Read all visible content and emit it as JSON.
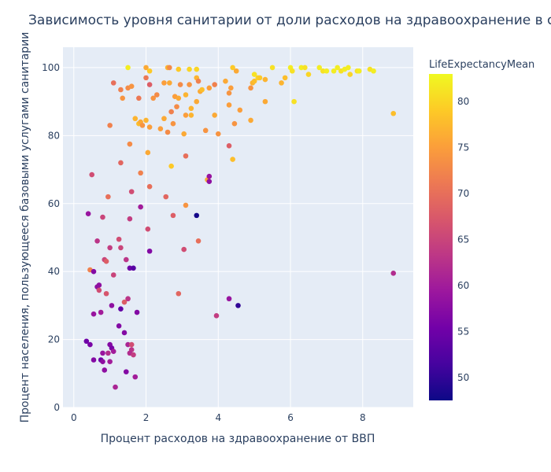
{
  "chart_data": {
    "type": "scatter",
    "title": "Зависимость уровня санитарии от доли расходов на здравоохранение в странах",
    "xlabel": "Процент расходов на здравоохранение от ВВП",
    "ylabel": "Процент населения, пользующееся базовыми услугами санитарии",
    "xlim": [
      -0.3,
      9.4
    ],
    "ylim": [
      0,
      106
    ],
    "xticks": [
      0,
      2,
      4,
      6,
      8
    ],
    "yticks": [
      0,
      20,
      40,
      60,
      80,
      100
    ],
    "grid": true,
    "colorbar": {
      "title": "LifeExpectancyMean",
      "min": 47.5,
      "max": 83,
      "ticks": [
        50,
        55,
        60,
        65,
        70,
        75,
        80
      ],
      "colorscale": [
        "#0d0887",
        "#46039f",
        "#7201a8",
        "#9c179e",
        "#bd3786",
        "#d8576b",
        "#ed7953",
        "#fb9f3a",
        "#fdca26",
        "#f0f921"
      ]
    },
    "points": [
      {
        "x": 1.5,
        "y": 100,
        "c": 82
      },
      {
        "x": 2.0,
        "y": 100,
        "c": 76
      },
      {
        "x": 2.1,
        "y": 99,
        "c": 79
      },
      {
        "x": 2.6,
        "y": 100,
        "c": 77
      },
      {
        "x": 2.65,
        "y": 100,
        "c": 73
      },
      {
        "x": 2.9,
        "y": 99.5,
        "c": 79
      },
      {
        "x": 3.2,
        "y": 99.5,
        "c": 80
      },
      {
        "x": 3.4,
        "y": 99.5,
        "c": 80
      },
      {
        "x": 4.4,
        "y": 100,
        "c": 79
      },
      {
        "x": 5.0,
        "y": 98,
        "c": 81
      },
      {
        "x": 5.1,
        "y": 97,
        "c": 80
      },
      {
        "x": 5.5,
        "y": 100,
        "c": 81
      },
      {
        "x": 6.0,
        "y": 100,
        "c": 82
      },
      {
        "x": 6.05,
        "y": 99,
        "c": 81
      },
      {
        "x": 6.3,
        "y": 100,
        "c": 82
      },
      {
        "x": 6.4,
        "y": 100,
        "c": 81
      },
      {
        "x": 6.5,
        "y": 98,
        "c": 80
      },
      {
        "x": 6.8,
        "y": 100,
        "c": 82
      },
      {
        "x": 6.9,
        "y": 99,
        "c": 81
      },
      {
        "x": 7.0,
        "y": 99,
        "c": 82
      },
      {
        "x": 7.2,
        "y": 99,
        "c": 82
      },
      {
        "x": 7.3,
        "y": 100,
        "c": 82
      },
      {
        "x": 7.4,
        "y": 99,
        "c": 81
      },
      {
        "x": 7.5,
        "y": 99.5,
        "c": 82
      },
      {
        "x": 7.6,
        "y": 100,
        "c": 82
      },
      {
        "x": 7.65,
        "y": 98,
        "c": 80
      },
      {
        "x": 7.85,
        "y": 99,
        "c": 81
      },
      {
        "x": 7.9,
        "y": 99,
        "c": 82
      },
      {
        "x": 8.2,
        "y": 99.5,
        "c": 81
      },
      {
        "x": 8.3,
        "y": 99,
        "c": 82
      },
      {
        "x": 2.0,
        "y": 97,
        "c": 71
      },
      {
        "x": 2.1,
        "y": 95,
        "c": 68
      },
      {
        "x": 1.3,
        "y": 93.5,
        "c": 72
      },
      {
        "x": 1.5,
        "y": 94,
        "c": 73
      },
      {
        "x": 1.6,
        "y": 94.5,
        "c": 74
      },
      {
        "x": 1.8,
        "y": 91,
        "c": 71
      },
      {
        "x": 1.35,
        "y": 91,
        "c": 74
      },
      {
        "x": 1.1,
        "y": 95.5,
        "c": 70
      },
      {
        "x": 2.2,
        "y": 91,
        "c": 74
      },
      {
        "x": 2.3,
        "y": 92,
        "c": 73
      },
      {
        "x": 2.5,
        "y": 95.5,
        "c": 75
      },
      {
        "x": 2.65,
        "y": 95.5,
        "c": 76
      },
      {
        "x": 2.8,
        "y": 91.5,
        "c": 75
      },
      {
        "x": 2.9,
        "y": 91,
        "c": 76
      },
      {
        "x": 2.95,
        "y": 95,
        "c": 73
      },
      {
        "x": 3.1,
        "y": 92,
        "c": 77
      },
      {
        "x": 3.2,
        "y": 95,
        "c": 74
      },
      {
        "x": 3.25,
        "y": 88,
        "c": 77
      },
      {
        "x": 3.4,
        "y": 97,
        "c": 77
      },
      {
        "x": 3.45,
        "y": 96,
        "c": 72
      },
      {
        "x": 3.5,
        "y": 93,
        "c": 76
      },
      {
        "x": 3.55,
        "y": 93.5,
        "c": 78
      },
      {
        "x": 3.75,
        "y": 94,
        "c": 75
      },
      {
        "x": 3.9,
        "y": 95,
        "c": 72
      },
      {
        "x": 4.2,
        "y": 96,
        "c": 76
      },
      {
        "x": 4.3,
        "y": 92.5,
        "c": 74
      },
      {
        "x": 4.35,
        "y": 94,
        "c": 75
      },
      {
        "x": 4.5,
        "y": 99,
        "c": 76
      },
      {
        "x": 4.9,
        "y": 94,
        "c": 74
      },
      {
        "x": 4.95,
        "y": 95.5,
        "c": 77
      },
      {
        "x": 5.0,
        "y": 96,
        "c": 78
      },
      {
        "x": 5.3,
        "y": 96.5,
        "c": 77
      },
      {
        "x": 5.15,
        "y": 97,
        "c": 79
      },
      {
        "x": 5.85,
        "y": 97,
        "c": 78
      },
      {
        "x": 5.75,
        "y": 95.5,
        "c": 77
      },
      {
        "x": 6.1,
        "y": 90,
        "c": 81
      },
      {
        "x": 1.7,
        "y": 85,
        "c": 77
      },
      {
        "x": 1.8,
        "y": 83.5,
        "c": 78
      },
      {
        "x": 1.85,
        "y": 84,
        "c": 76
      },
      {
        "x": 1.9,
        "y": 83,
        "c": 74
      },
      {
        "x": 2.0,
        "y": 84.5,
        "c": 77
      },
      {
        "x": 2.1,
        "y": 82.5,
        "c": 75
      },
      {
        "x": 2.4,
        "y": 82,
        "c": 75
      },
      {
        "x": 2.5,
        "y": 85,
        "c": 76
      },
      {
        "x": 2.6,
        "y": 81,
        "c": 73
      },
      {
        "x": 2.75,
        "y": 83.5,
        "c": 74
      },
      {
        "x": 2.7,
        "y": 87,
        "c": 72
      },
      {
        "x": 2.85,
        "y": 88.5,
        "c": 73
      },
      {
        "x": 3.05,
        "y": 80.5,
        "c": 76
      },
      {
        "x": 3.1,
        "y": 86,
        "c": 75
      },
      {
        "x": 3.25,
        "y": 86,
        "c": 77
      },
      {
        "x": 3.4,
        "y": 90,
        "c": 76
      },
      {
        "x": 3.65,
        "y": 81.5,
        "c": 74
      },
      {
        "x": 3.9,
        "y": 86,
        "c": 76
      },
      {
        "x": 4.0,
        "y": 80.5,
        "c": 74
      },
      {
        "x": 4.3,
        "y": 89,
        "c": 75
      },
      {
        "x": 4.45,
        "y": 83.5,
        "c": 74
      },
      {
        "x": 4.6,
        "y": 87.5,
        "c": 75
      },
      {
        "x": 4.9,
        "y": 84.5,
        "c": 76
      },
      {
        "x": 5.3,
        "y": 90,
        "c": 76
      },
      {
        "x": 8.85,
        "y": 86.5,
        "c": 78
      },
      {
        "x": 1.0,
        "y": 83,
        "c": 72
      },
      {
        "x": 1.55,
        "y": 77.5,
        "c": 73
      },
      {
        "x": 2.05,
        "y": 75,
        "c": 76
      },
      {
        "x": 2.7,
        "y": 71,
        "c": 79
      },
      {
        "x": 3.1,
        "y": 74,
        "c": 70
      },
      {
        "x": 4.3,
        "y": 77,
        "c": 68
      },
      {
        "x": 4.4,
        "y": 73,
        "c": 78
      },
      {
        "x": 3.7,
        "y": 67,
        "c": 76
      },
      {
        "x": 3.75,
        "y": 68,
        "c": 59
      },
      {
        "x": 3.75,
        "y": 66.5,
        "c": 58
      },
      {
        "x": 1.3,
        "y": 72,
        "c": 69
      },
      {
        "x": 1.85,
        "y": 69,
        "c": 72
      },
      {
        "x": 0.5,
        "y": 68.5,
        "c": 66
      },
      {
        "x": 0.95,
        "y": 62,
        "c": 70
      },
      {
        "x": 1.6,
        "y": 63.5,
        "c": 66
      },
      {
        "x": 2.1,
        "y": 65,
        "c": 70
      },
      {
        "x": 2.55,
        "y": 62,
        "c": 69
      },
      {
        "x": 3.1,
        "y": 59.5,
        "c": 74
      },
      {
        "x": 0.4,
        "y": 57,
        "c": 59
      },
      {
        "x": 0.8,
        "y": 56,
        "c": 65
      },
      {
        "x": 1.55,
        "y": 55.5,
        "c": 64
      },
      {
        "x": 1.85,
        "y": 59,
        "c": 60
      },
      {
        "x": 2.75,
        "y": 56.5,
        "c": 68
      },
      {
        "x": 3.4,
        "y": 56.5,
        "c": 48
      },
      {
        "x": 2.05,
        "y": 52.5,
        "c": 66
      },
      {
        "x": 0.65,
        "y": 49,
        "c": 63
      },
      {
        "x": 1.25,
        "y": 49.5,
        "c": 66
      },
      {
        "x": 1.0,
        "y": 47,
        "c": 64
      },
      {
        "x": 1.3,
        "y": 47,
        "c": 65
      },
      {
        "x": 2.1,
        "y": 46,
        "c": 57
      },
      {
        "x": 3.05,
        "y": 46.5,
        "c": 66
      },
      {
        "x": 3.45,
        "y": 49,
        "c": 70
      },
      {
        "x": 0.85,
        "y": 43.5,
        "c": 65
      },
      {
        "x": 0.9,
        "y": 43,
        "c": 68
      },
      {
        "x": 1.45,
        "y": 43.5,
        "c": 63
      },
      {
        "x": 0.45,
        "y": 40.5,
        "c": 72
      },
      {
        "x": 0.55,
        "y": 40,
        "c": 57
      },
      {
        "x": 1.55,
        "y": 41,
        "c": 55
      },
      {
        "x": 1.65,
        "y": 41,
        "c": 53
      },
      {
        "x": 1.1,
        "y": 39,
        "c": 65
      },
      {
        "x": 8.85,
        "y": 39.5,
        "c": 62
      },
      {
        "x": 0.65,
        "y": 35.5,
        "c": 58
      },
      {
        "x": 0.7,
        "y": 36,
        "c": 58
      },
      {
        "x": 0.7,
        "y": 34.5,
        "c": 66
      },
      {
        "x": 0.9,
        "y": 33.5,
        "c": 67
      },
      {
        "x": 1.5,
        "y": 32,
        "c": 63
      },
      {
        "x": 1.4,
        "y": 31,
        "c": 68
      },
      {
        "x": 1.05,
        "y": 30,
        "c": 58
      },
      {
        "x": 2.9,
        "y": 33.5,
        "c": 69
      },
      {
        "x": 4.3,
        "y": 32,
        "c": 59
      },
      {
        "x": 4.55,
        "y": 30,
        "c": 50
      },
      {
        "x": 3.95,
        "y": 27,
        "c": 64
      },
      {
        "x": 0.55,
        "y": 27.5,
        "c": 59
      },
      {
        "x": 0.75,
        "y": 28,
        "c": 60
      },
      {
        "x": 1.3,
        "y": 29,
        "c": 54
      },
      {
        "x": 1.75,
        "y": 28,
        "c": 57
      },
      {
        "x": 1.25,
        "y": 24,
        "c": 57
      },
      {
        "x": 1.4,
        "y": 22,
        "c": 57
      },
      {
        "x": 0.35,
        "y": 19.5,
        "c": 55
      },
      {
        "x": 0.45,
        "y": 18.5,
        "c": 56
      },
      {
        "x": 1.0,
        "y": 18.5,
        "c": 57
      },
      {
        "x": 1.05,
        "y": 17.5,
        "c": 56
      },
      {
        "x": 1.5,
        "y": 18.5,
        "c": 61
      },
      {
        "x": 1.6,
        "y": 18.5,
        "c": 66
      },
      {
        "x": 1.6,
        "y": 17,
        "c": 63
      },
      {
        "x": 0.8,
        "y": 16,
        "c": 59
      },
      {
        "x": 0.95,
        "y": 16,
        "c": 62
      },
      {
        "x": 1.1,
        "y": 16.5,
        "c": 60
      },
      {
        "x": 1.55,
        "y": 16,
        "c": 62
      },
      {
        "x": 1.65,
        "y": 15.5,
        "c": 64
      },
      {
        "x": 0.55,
        "y": 14,
        "c": 57
      },
      {
        "x": 0.75,
        "y": 14,
        "c": 55
      },
      {
        "x": 0.8,
        "y": 13.5,
        "c": 58
      },
      {
        "x": 1.0,
        "y": 13.5,
        "c": 60
      },
      {
        "x": 1.45,
        "y": 10.5,
        "c": 57
      },
      {
        "x": 0.85,
        "y": 11,
        "c": 58
      },
      {
        "x": 1.7,
        "y": 9,
        "c": 60
      },
      {
        "x": 1.15,
        "y": 6,
        "c": 61
      }
    ]
  }
}
